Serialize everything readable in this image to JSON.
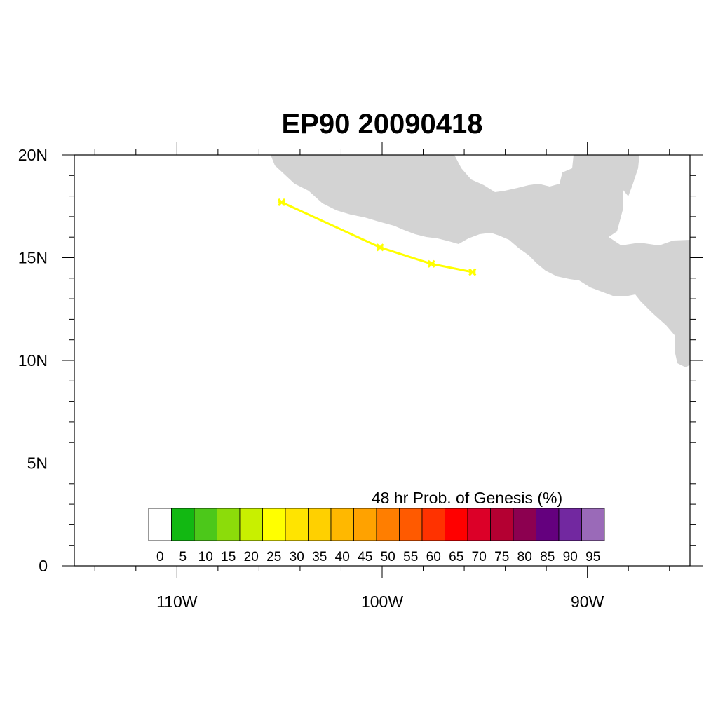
{
  "title": "EP90 20090418",
  "map": {
    "lon_range": [
      -115,
      -85
    ],
    "lat_range": [
      0,
      20
    ],
    "land_color": "#d3d3d3",
    "frame_color": "#000000",
    "lat_labels": [
      {
        "value": 20,
        "text": "20N"
      },
      {
        "value": 15,
        "text": "15N"
      },
      {
        "value": 10,
        "text": "10N"
      },
      {
        "value": 5,
        "text": "5N"
      },
      {
        "value": 0,
        "text": "0"
      }
    ],
    "lon_labels": [
      {
        "value": -110,
        "text": "110W"
      },
      {
        "value": -100,
        "text": "100W"
      },
      {
        "value": -90,
        "text": "90W"
      }
    ],
    "minor_lon_step": 2,
    "minor_lat_step": 1
  },
  "track": {
    "color": "#ffff00",
    "points": [
      {
        "lon": -104.9,
        "lat": 17.7
      },
      {
        "lon": -100.1,
        "lat": 15.5
      },
      {
        "lon": -97.6,
        "lat": 14.7
      },
      {
        "lon": -95.6,
        "lat": 14.3
      }
    ]
  },
  "colorbar": {
    "title": "48 hr Prob. of Genesis (%)",
    "colors": [
      "#ffffff",
      "#12b812",
      "#4cc81a",
      "#8cdc0a",
      "#c8f000",
      "#ffff00",
      "#ffe400",
      "#ffd000",
      "#ffb800",
      "#ffa200",
      "#ff7e00",
      "#ff5a00",
      "#ff3200",
      "#ff0000",
      "#dc0028",
      "#b40032",
      "#8c0050",
      "#64007e",
      "#7228a0",
      "#9a6ab8"
    ],
    "labels": [
      "0",
      "5",
      "10",
      "15",
      "20",
      "25",
      "30",
      "35",
      "40",
      "45",
      "50",
      "55",
      "60",
      "65",
      "70",
      "75",
      "80",
      "85",
      "90",
      "95"
    ]
  }
}
